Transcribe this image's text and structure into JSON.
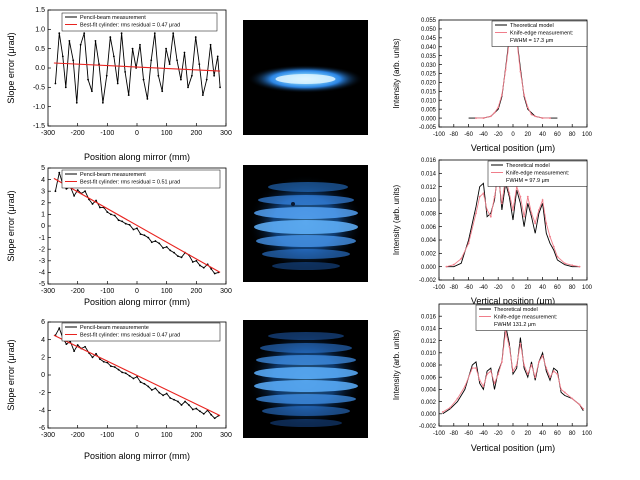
{
  "colors": {
    "measurement": "#000000",
    "fit": "#e8231f",
    "theory_line": "#000000",
    "knife_edge": "#f07d8a",
    "beam_core": "#8ad8ff",
    "beam_glow": "#1e6fd0"
  },
  "chart_data": [
    {
      "type": "line",
      "panel": "slope-1",
      "xlabel": "Position along mirror (mm)",
      "ylabel": "Slope error (μrad)",
      "xlim": [
        -300,
        300
      ],
      "ylim": [
        -1.5,
        1.5
      ],
      "xticks": [
        "-300",
        "-200",
        "-100",
        "0",
        "100",
        "200",
        "300"
      ],
      "yticks": [
        "-1.5",
        "-1.0",
        "-0.5",
        "0.0",
        "0.5",
        "1.0",
        "1.5"
      ],
      "legend": [
        "Pencil-beam measurement",
        "Best-fit cylinder: rms residual = 0.47 μrad"
      ],
      "legend_position": "top",
      "series": [
        {
          "name": "Pencil-beam measurement",
          "style": "line-markers",
          "x": [
            -275,
            -262,
            -250,
            -240,
            -228,
            -215,
            -203,
            -190,
            -178,
            -165,
            -152,
            -140,
            -128,
            -115,
            -102,
            -90,
            -78,
            -65,
            -52,
            -40,
            -28,
            -15,
            -3,
            10,
            22,
            35,
            48,
            60,
            72,
            85,
            98,
            110,
            122,
            135,
            148,
            160,
            172,
            185,
            198,
            210,
            222,
            235,
            248,
            260,
            272,
            280
          ],
          "y": [
            -0.4,
            0.9,
            0.3,
            -0.5,
            0.7,
            0.2,
            -0.9,
            0.6,
            0.9,
            -0.3,
            -0.6,
            0.7,
            0.1,
            -0.9,
            -0.2,
            0.8,
            0.3,
            -0.4,
            0.9,
            -0.1,
            -0.7,
            0.5,
            0.0,
            0.6,
            -0.3,
            -0.8,
            0.2,
            0.9,
            -0.2,
            -0.6,
            0.5,
            0.1,
            0.9,
            0.2,
            -0.3,
            0.4,
            -0.5,
            -0.2,
            0.8,
            0.1,
            -0.7,
            -0.3,
            0.6,
            -0.2,
            0.3,
            -0.5
          ]
        },
        {
          "name": "Best-fit cylinder: rms residual = 0.47 μrad",
          "style": "line",
          "x": [
            -280,
            280
          ],
          "y": [
            0.13,
            -0.08
          ]
        }
      ]
    },
    {
      "type": "line",
      "panel": "slope-2",
      "xlabel": "Position along mirror (mm)",
      "ylabel": "Slope error (μrad)",
      "xlim": [
        -300,
        300
      ],
      "ylim": [
        -5,
        5
      ],
      "xticks": [
        "-300",
        "-200",
        "-100",
        "0",
        "100",
        "200",
        "300"
      ],
      "yticks": [
        "-5",
        "-4",
        "-3",
        "-2",
        "-1",
        "0",
        "1",
        "2",
        "3",
        "4",
        "5"
      ],
      "legend": [
        "Pencil-beam measurement",
        "Best-fit cylinder: rms residual = 0.51 μrad"
      ],
      "legend_position": "top",
      "series": [
        {
          "name": "Pencil-beam measurement",
          "style": "line-markers",
          "x": [
            -275,
            -262,
            -250,
            -238,
            -225,
            -212,
            -200,
            -188,
            -175,
            -162,
            -150,
            -138,
            -125,
            -112,
            -100,
            -88,
            -75,
            -62,
            -50,
            -38,
            -25,
            -12,
            0,
            12,
            25,
            38,
            50,
            62,
            75,
            88,
            100,
            112,
            125,
            138,
            150,
            162,
            175,
            188,
            200,
            212,
            225,
            238,
            250,
            262,
            275
          ],
          "y": [
            3.0,
            4.6,
            3.6,
            3.2,
            3.4,
            2.6,
            3.1,
            2.8,
            3.0,
            2.3,
            1.9,
            2.2,
            1.6,
            1.6,
            1.2,
            1.0,
            0.9,
            0.5,
            0.4,
            0.2,
            0.1,
            -0.3,
            -0.2,
            -0.7,
            -0.8,
            -1.0,
            -1.4,
            -1.3,
            -1.5,
            -1.9,
            -1.8,
            -2.1,
            -2.3,
            -2.6,
            -2.7,
            -2.3,
            -2.5,
            -3.1,
            -3.0,
            -3.4,
            -3.6,
            -3.3,
            -3.7,
            -4.1,
            -4.0
          ]
        },
        {
          "name": "Best-fit cylinder: rms residual = 0.51 μrad",
          "style": "line",
          "x": [
            -280,
            280
          ],
          "y": [
            4.1,
            -4.0
          ]
        }
      ]
    },
    {
      "type": "line",
      "panel": "slope-3",
      "xlabel": "Position along mirror (mm)",
      "ylabel": "Slope error (μrad)",
      "xlim": [
        -300,
        300
      ],
      "ylim": [
        -6,
        6
      ],
      "xticks": [
        "-300",
        "-200",
        "-100",
        "0",
        "100",
        "200",
        "300"
      ],
      "yticks": [
        "-6",
        "-4",
        "-2",
        "0",
        "2",
        "4",
        "6"
      ],
      "legend": [
        "Pencil-beam measuremente",
        "Best-fit cylinder: rms residual = 0.47 μrad"
      ],
      "legend_position": "top",
      "series": [
        {
          "name": "Pencil-beam measuremente",
          "style": "line-markers",
          "x": [
            -275,
            -262,
            -250,
            -238,
            -225,
            -212,
            -200,
            -188,
            -175,
            -162,
            -150,
            -138,
            -125,
            -112,
            -100,
            -88,
            -75,
            -62,
            -50,
            -38,
            -25,
            -12,
            0,
            12,
            25,
            38,
            50,
            62,
            75,
            88,
            100,
            112,
            125,
            138,
            150,
            162,
            175,
            188,
            200,
            212,
            225,
            238,
            250,
            262,
            275
          ],
          "y": [
            4.5,
            5.3,
            4.2,
            3.5,
            3.8,
            2.7,
            3.4,
            3.0,
            3.2,
            2.5,
            2.0,
            2.4,
            1.8,
            1.5,
            1.4,
            1.0,
            0.9,
            0.6,
            0.3,
            0.2,
            -0.1,
            -0.4,
            -0.2,
            -0.8,
            -1.0,
            -1.3,
            -1.7,
            -1.5,
            -2.0,
            -2.3,
            -2.1,
            -2.6,
            -2.8,
            -3.0,
            -3.4,
            -3.0,
            -3.4,
            -3.9,
            -3.8,
            -4.1,
            -4.4,
            -4.0,
            -4.5,
            -4.9,
            -4.6
          ]
        },
        {
          "name": "Best-fit cylinder: rms residual = 0.47 μrad",
          "style": "line",
          "x": [
            -280,
            280
          ],
          "y": [
            4.5,
            -4.6
          ]
        }
      ]
    },
    {
      "type": "line",
      "panel": "profile-1",
      "xlabel": "Vertical position (μm)",
      "ylabel": "Intensity (arb. units)",
      "xlim": [
        -100,
        100
      ],
      "ylim": [
        -0.005,
        0.055
      ],
      "xticks": [
        "-100",
        "-80",
        "-60",
        "-40",
        "-20",
        "0",
        "20",
        "40",
        "60",
        "80",
        "100"
      ],
      "yticks": [
        "-0.005",
        "0.000",
        "0.005",
        "0.010",
        "0.015",
        "0.020",
        "0.025",
        "0.030",
        "0.035",
        "0.040",
        "0.045",
        "0.050",
        "0.055"
      ],
      "legend": [
        "Theoretical model",
        "Knife-edge measurement:"
      ],
      "legend_note": "FWHM = 17.3 μm",
      "legend_position": "top-right",
      "series": [
        {
          "name": "Theoretical model",
          "style": "line",
          "x": [
            -60,
            -40,
            -30,
            -20,
            -15,
            -10,
            -5,
            0,
            5,
            10,
            15,
            20,
            30,
            40,
            60
          ],
          "y": [
            0.0,
            0.0,
            0.001,
            0.005,
            0.012,
            0.028,
            0.045,
            0.053,
            0.045,
            0.028,
            0.012,
            0.005,
            0.001,
            0.0,
            0.0
          ]
        },
        {
          "name": "Knife-edge measurement:",
          "style": "line-markers",
          "x": [
            -50,
            -40,
            -30,
            -25,
            -20,
            -15,
            -10,
            -5,
            0,
            5,
            10,
            15,
            20,
            25,
            30,
            40,
            50
          ],
          "y": [
            0.0,
            0.0,
            0.001,
            0.003,
            0.006,
            0.013,
            0.027,
            0.043,
            0.049,
            0.044,
            0.026,
            0.013,
            0.006,
            0.002,
            0.001,
            0.0,
            0.0
          ]
        }
      ]
    },
    {
      "type": "line",
      "panel": "profile-2",
      "xlabel": "Vertical position (μm)",
      "ylabel": "Intensity (arb. units)",
      "xlim": [
        -100,
        100
      ],
      "ylim": [
        -0.002,
        0.016
      ],
      "xticks": [
        "-100",
        "-80",
        "-60",
        "-40",
        "-20",
        "0",
        "20",
        "40",
        "60",
        "80",
        "100"
      ],
      "yticks": [
        "-0.002",
        "0.000",
        "0.002",
        "0.004",
        "0.006",
        "0.008",
        "0.010",
        "0.012",
        "0.014",
        "0.016"
      ],
      "legend": [
        "Theoretical model",
        "Knife-edge measurement:"
      ],
      "legend_note": "FWHM = 97.9 μm",
      "legend_position": "top-right",
      "series": [
        {
          "name": "Theoretical model",
          "style": "line",
          "x": [
            -90,
            -80,
            -70,
            -60,
            -50,
            -45,
            -40,
            -35,
            -30,
            -25,
            -20,
            -15,
            -10,
            -5,
            0,
            5,
            10,
            15,
            20,
            25,
            30,
            35,
            40,
            45,
            50,
            55,
            60,
            70,
            80,
            90
          ],
          "y": [
            0.0,
            0.0,
            0.0005,
            0.004,
            0.009,
            0.012,
            0.0125,
            0.0075,
            0.008,
            0.01,
            0.0145,
            0.0085,
            0.0125,
            0.0105,
            0.007,
            0.0115,
            0.0095,
            0.006,
            0.0095,
            0.0075,
            0.005,
            0.008,
            0.0095,
            0.005,
            0.0035,
            0.0025,
            0.001,
            0.0003,
            0.0,
            0.0
          ]
        },
        {
          "name": "Knife-edge measurement:",
          "style": "line-markers",
          "x": [
            -90,
            -80,
            -70,
            -60,
            -50,
            -45,
            -40,
            -35,
            -30,
            -25,
            -20,
            -15,
            -10,
            -5,
            0,
            5,
            10,
            15,
            20,
            25,
            30,
            35,
            40,
            45,
            50,
            55,
            60,
            70,
            80,
            90
          ],
          "y": [
            0.0,
            0.0003,
            0.0012,
            0.0035,
            0.008,
            0.0105,
            0.011,
            0.0085,
            0.0075,
            0.0105,
            0.0135,
            0.0095,
            0.0135,
            0.011,
            0.0085,
            0.012,
            0.0105,
            0.0075,
            0.0105,
            0.008,
            0.0065,
            0.0085,
            0.01,
            0.0065,
            0.0045,
            0.003,
            0.0015,
            0.0005,
            0.0002,
            0.0
          ]
        }
      ]
    },
    {
      "type": "line",
      "panel": "profile-3",
      "xlabel": "Vertical position (μm)",
      "ylabel": "Intensity (arb. units)",
      "xlim": [
        -100,
        100
      ],
      "ylim": [
        -0.002,
        0.018
      ],
      "xticks": [
        "-100",
        "-80",
        "-60",
        "-40",
        "-20",
        "0",
        "20",
        "40",
        "60",
        "80",
        "100"
      ],
      "yticks": [
        "-0.002",
        "0.000",
        "0.002",
        "0.004",
        "0.006",
        "0.008",
        "0.010",
        "0.012",
        "0.014",
        "0.016"
      ],
      "legend": [
        "Theoretical model",
        "Knife-edge measurement:"
      ],
      "legend_note": "FWHM 131.2 μm",
      "legend_position": "top-right",
      "series": [
        {
          "name": "Theoretical model",
          "style": "line",
          "x": [
            -95,
            -85,
            -75,
            -65,
            -55,
            -50,
            -45,
            -40,
            -35,
            -30,
            -25,
            -20,
            -15,
            -10,
            -5,
            0,
            5,
            10,
            15,
            20,
            25,
            30,
            35,
            40,
            45,
            50,
            55,
            60,
            65,
            70,
            80,
            90,
            95
          ],
          "y": [
            0.0,
            0.0008,
            0.002,
            0.004,
            0.008,
            0.0085,
            0.005,
            0.004,
            0.007,
            0.0075,
            0.004,
            0.007,
            0.0085,
            0.0145,
            0.0115,
            0.0065,
            0.0075,
            0.0125,
            0.0075,
            0.006,
            0.0085,
            0.0055,
            0.0085,
            0.01,
            0.007,
            0.0055,
            0.0075,
            0.007,
            0.0035,
            0.003,
            0.0025,
            0.0015,
            0.0005
          ]
        },
        {
          "name": "Knife-edge measurement:",
          "style": "line-markers",
          "x": [
            -95,
            -85,
            -75,
            -65,
            -55,
            -50,
            -45,
            -40,
            -35,
            -30,
            -25,
            -20,
            -15,
            -10,
            -5,
            0,
            5,
            10,
            15,
            20,
            25,
            30,
            35,
            40,
            45,
            50,
            55,
            60,
            65,
            70,
            80,
            90,
            95
          ],
          "y": [
            0.0003,
            0.001,
            0.0025,
            0.0045,
            0.0075,
            0.0075,
            0.0055,
            0.0045,
            0.0065,
            0.007,
            0.005,
            0.0065,
            0.0085,
            0.0135,
            0.011,
            0.007,
            0.008,
            0.0115,
            0.008,
            0.0065,
            0.008,
            0.006,
            0.0085,
            0.0095,
            0.0075,
            0.006,
            0.007,
            0.0065,
            0.004,
            0.0035,
            0.0025,
            0.0015,
            0.0008
          ]
        }
      ]
    }
  ],
  "beam_images": [
    {
      "profile": "narrow",
      "bands": 1
    },
    {
      "profile": "multi-band",
      "bands": 7
    },
    {
      "profile": "multi-band",
      "bands": 8
    }
  ]
}
